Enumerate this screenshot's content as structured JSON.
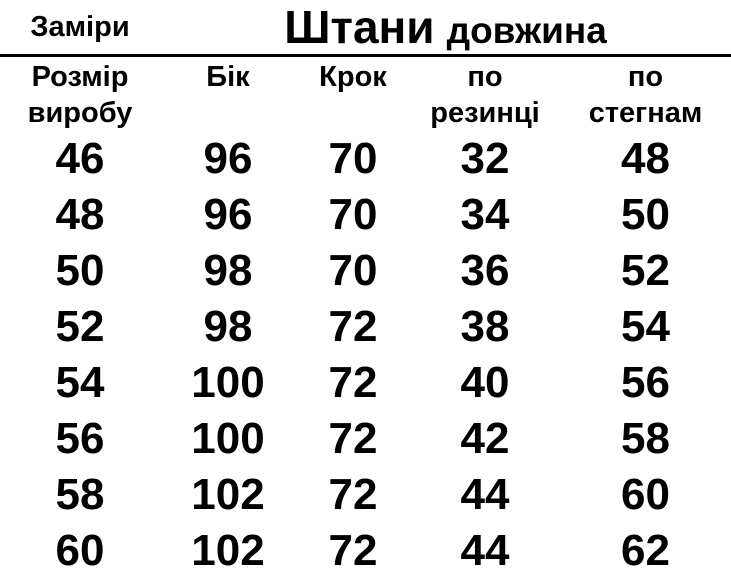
{
  "page": {
    "background_color": "#ffffff",
    "text_color": "#000000",
    "border_color": "#000000"
  },
  "size_chart": {
    "corner_label": "Заміри",
    "title": {
      "main": "Штани",
      "sub": "довжина"
    },
    "column_headers": [
      "Розмір\nвиробу",
      "Бік",
      "Крок",
      "по\nрезинці",
      "по\nстегнам"
    ],
    "rows": [
      [
        46,
        96,
        70,
        32,
        48
      ],
      [
        48,
        96,
        70,
        34,
        50
      ],
      [
        50,
        98,
        70,
        36,
        52
      ],
      [
        52,
        98,
        72,
        38,
        54
      ],
      [
        54,
        100,
        72,
        40,
        56
      ],
      [
        56,
        100,
        72,
        42,
        58
      ],
      [
        58,
        102,
        72,
        44,
        60
      ],
      [
        60,
        102,
        72,
        44,
        62
      ]
    ]
  }
}
